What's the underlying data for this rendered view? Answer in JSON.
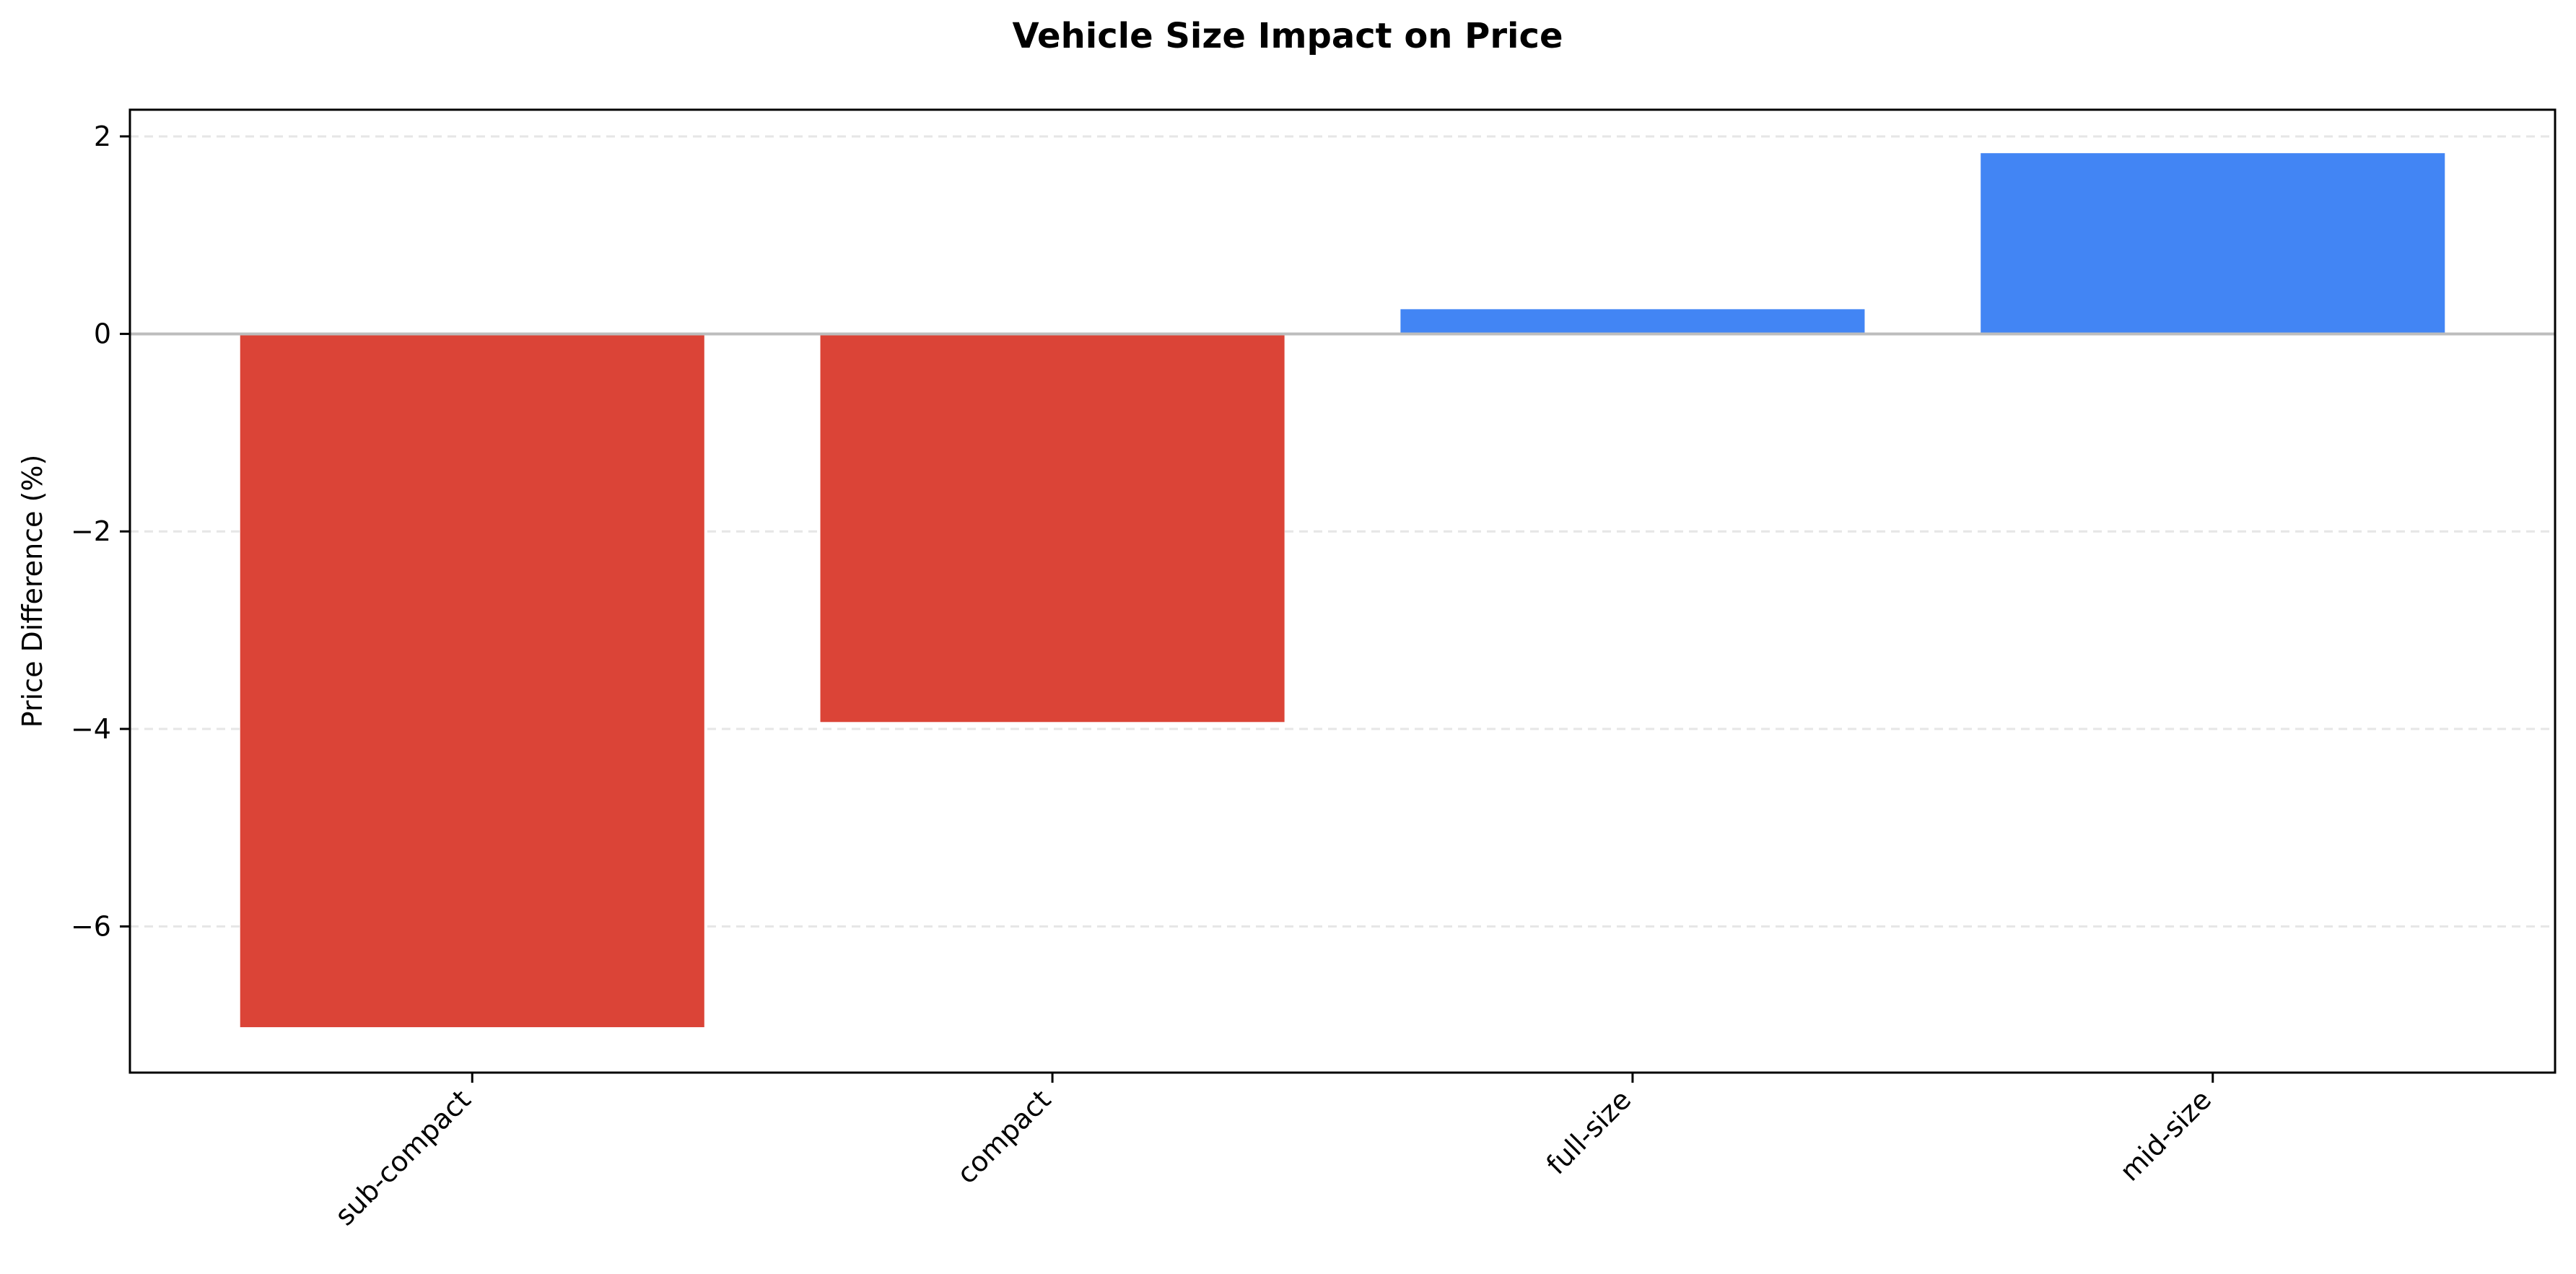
{
  "chart_data": {
    "type": "bar",
    "title": "Vehicle Size Impact on Price",
    "xlabel": "",
    "ylabel": "Price Difference (%)",
    "categories": [
      "sub-compact",
      "compact",
      "full-size",
      "mid-size"
    ],
    "values": [
      -7.02,
      -3.93,
      0.25,
      1.83
    ],
    "ylim": [
      -7.48,
      2.27
    ],
    "yticks": [
      2,
      0,
      -2,
      -4,
      -6
    ],
    "ytick_labels": [
      "2",
      "0",
      "−2",
      "−4",
      "−6"
    ],
    "grid": true,
    "zero_line": true,
    "colors": {
      "negative": "#DB4437",
      "positive": "#4285F4"
    }
  }
}
